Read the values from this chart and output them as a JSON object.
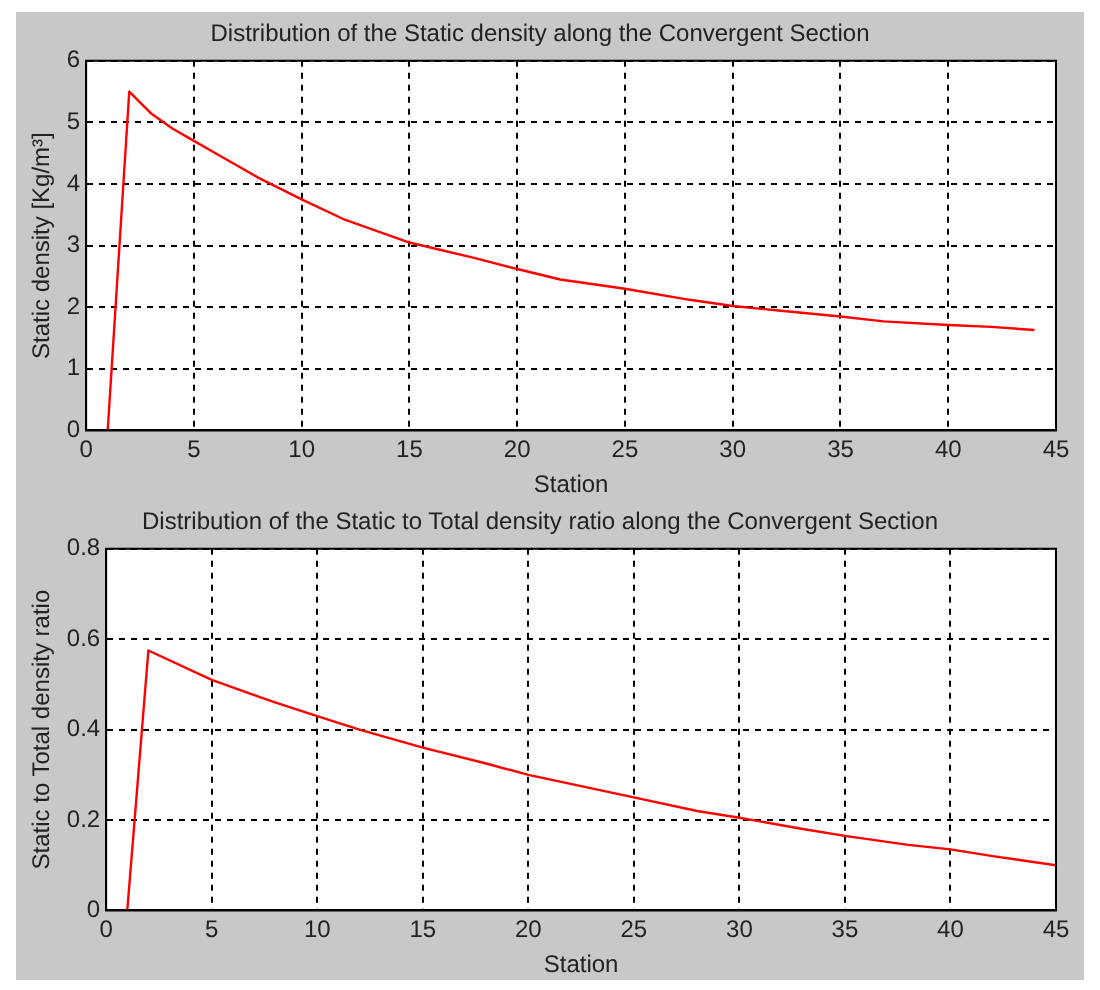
{
  "chart_data": [
    {
      "type": "line",
      "title": "Distribution of the Static density along the Convergent Section",
      "xlabel": "Station",
      "ylabel": "Static density [Kg/m³]",
      "x": [
        1,
        2,
        3,
        4,
        5,
        6,
        7,
        8,
        10,
        12,
        15,
        18,
        20,
        22,
        25,
        28,
        30,
        32,
        35,
        37,
        40,
        42,
        44
      ],
      "series": [
        {
          "color": "#ff0000",
          "values": [
            0,
            5.5,
            5.15,
            4.9,
            4.7,
            4.5,
            4.3,
            4.1,
            3.75,
            3.42,
            3.05,
            2.8,
            2.62,
            2.45,
            2.3,
            2.12,
            2.02,
            1.95,
            1.85,
            1.77,
            1.71,
            1.68,
            1.63
          ]
        }
      ],
      "xlim": [
        0,
        45
      ],
      "xticks": [
        0,
        5,
        10,
        15,
        20,
        25,
        30,
        35,
        40,
        45
      ],
      "ylim": [
        0,
        6
      ],
      "yticks": [
        0,
        1,
        2,
        3,
        4,
        5,
        6
      ],
      "grid": true,
      "line_style": "solid",
      "marker": "none",
      "legend": false
    },
    {
      "type": "line",
      "title": "Distribution of the Static to Total density ratio along the Convergent Section",
      "xlabel": "Station",
      "ylabel": "Static to Total density ratio",
      "x": [
        1,
        2,
        5,
        8,
        10,
        12,
        15,
        18,
        20,
        22,
        25,
        28,
        30,
        33,
        35,
        38,
        40,
        42,
        45
      ],
      "series": [
        {
          "color": "#ff0000",
          "values": [
            0,
            0.575,
            0.51,
            0.46,
            0.43,
            0.4,
            0.36,
            0.325,
            0.3,
            0.28,
            0.25,
            0.22,
            0.205,
            0.18,
            0.165,
            0.145,
            0.135,
            0.12,
            0.1
          ]
        }
      ],
      "xlim": [
        0,
        45
      ],
      "xticks": [
        0,
        5,
        10,
        15,
        20,
        25,
        30,
        35,
        40,
        45
      ],
      "ylim": [
        0,
        0.8
      ],
      "yticks": [
        0,
        0.2,
        0.4,
        0.6,
        0.8
      ],
      "grid": true,
      "line_style": "solid",
      "marker": "none",
      "legend": false
    }
  ]
}
